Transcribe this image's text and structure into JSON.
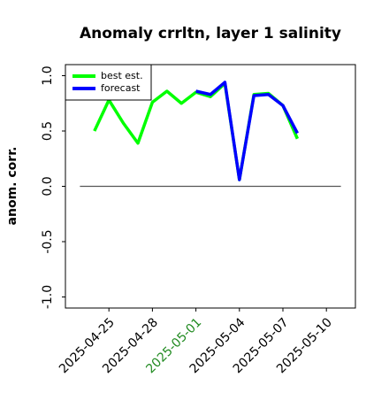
{
  "chart_data": {
    "type": "line",
    "title": "Anomaly crrltn, layer 1 salinity",
    "ylabel": "anom. corr.",
    "x": [
      "2025-04-24",
      "2025-04-25",
      "2025-04-26",
      "2025-04-27",
      "2025-04-28",
      "2025-04-29",
      "2025-04-30",
      "2025-05-01",
      "2025-05-02",
      "2025-05-03",
      "2025-05-04",
      "2025-05-05",
      "2025-05-06",
      "2025-05-07",
      "2025-05-08"
    ],
    "series": [
      {
        "name": "best est.",
        "color": "#00ff00",
        "values": [
          0.5,
          0.78,
          0.57,
          0.39,
          0.76,
          0.86,
          0.75,
          0.85,
          0.81,
          0.93,
          0.06,
          0.83,
          0.84,
          0.73,
          0.43
        ]
      },
      {
        "name": "forecast",
        "color": "#0000ff",
        "values": [
          null,
          null,
          null,
          null,
          null,
          null,
          null,
          0.86,
          0.83,
          0.94,
          0.06,
          0.82,
          0.83,
          0.73,
          0.48
        ]
      }
    ],
    "xlim": [
      "2025-04-22",
      "2025-05-12"
    ],
    "ylim": [
      -1.1,
      1.1
    ],
    "xticks": [
      "2025-04-25",
      "2025-04-28",
      "2025-05-01",
      "2025-05-04",
      "2025-05-07",
      "2025-05-10"
    ],
    "xtick_colors": [
      "#000000",
      "#000000",
      "#228b22",
      "#000000",
      "#000000",
      "#000000"
    ],
    "yticks": [
      {
        "value": -1,
        "label": "-1.0"
      },
      -0.5,
      {
        "value": 0,
        "label": "0.0"
      },
      0.5,
      {
        "value": 1,
        "label": "1.0"
      }
    ],
    "reference_line": {
      "y": 0,
      "x": [
        "2025-04-23",
        "2025-05-11"
      ],
      "color": "#555555"
    },
    "legend": "upper left"
  }
}
